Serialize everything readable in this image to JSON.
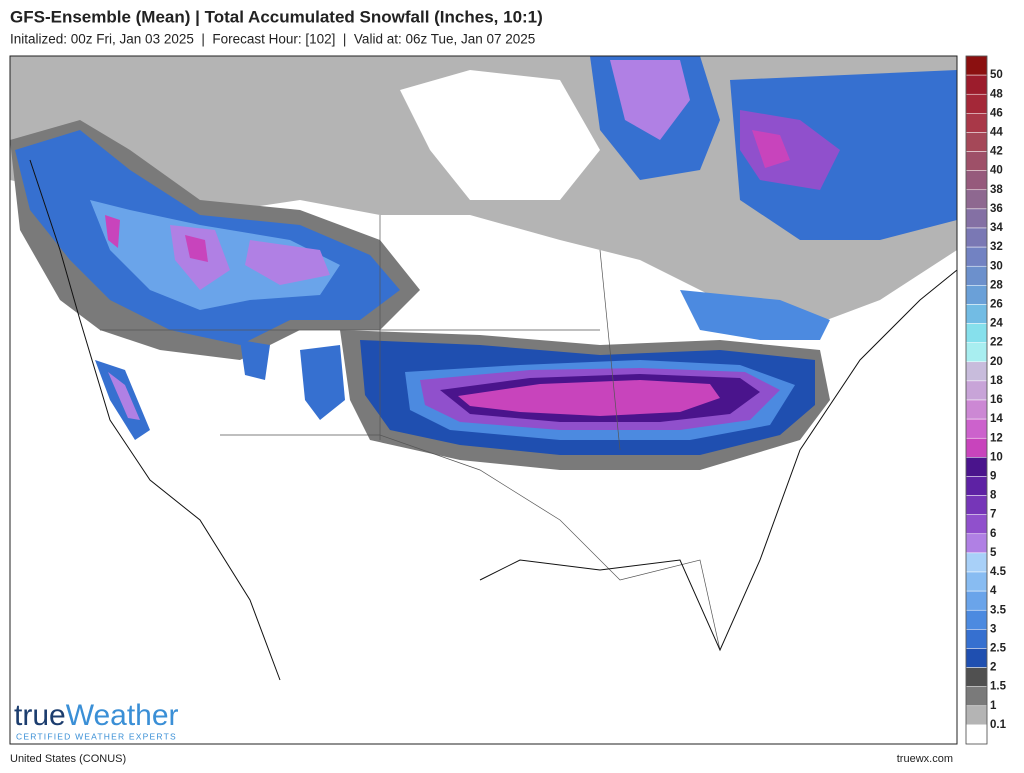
{
  "header": {
    "title": "GFS-Ensemble (Mean) | Total Accumulated Snowfall (Inches, 10:1)",
    "subtitle": "Initalized: 00z Fri, Jan 03 2025  |  Forecast Hour: [102]  |  Valid at: 06z Tue, Jan 07 2025"
  },
  "legend": {
    "labels": [
      50,
      48,
      46,
      44,
      42,
      40,
      38,
      36,
      34,
      32,
      30,
      28,
      26,
      24,
      22,
      20,
      18,
      16,
      14,
      12,
      10,
      9,
      8,
      7,
      6,
      5,
      4.5,
      4,
      3.5,
      3,
      2.5,
      2,
      1.5,
      1,
      0.1
    ],
    "colors": [
      "#8b1010",
      "#9c1c2c",
      "#a42838",
      "#a93848",
      "#a54858",
      "#9e5068",
      "#965a7c",
      "#8e6890",
      "#8470a4",
      "#7a78b4",
      "#7282c2",
      "#6c90cc",
      "#6aa0d8",
      "#72bce4",
      "#86e0ec",
      "#a8eef0",
      "#c8bcdc",
      "#c8a4d8",
      "#cc88d4",
      "#cc62cc",
      "#c844bc",
      "#4a148c",
      "#5e22a4",
      "#7636b8",
      "#9050cc",
      "#b080e4",
      "#a8d0f8",
      "#88bcf2",
      "#6aa4ea",
      "#4c8ae0",
      "#3670d0",
      "#1f4fb0",
      "#505050",
      "#7a7a7a",
      "#b4b4b4",
      "#ffffff"
    ]
  },
  "logo": {
    "name_part1": "true",
    "name_part2": "Weather",
    "tagline": "CERTIFIED WEATHER EXPERTS"
  },
  "footer": {
    "region": "United States (CONUS)",
    "site": "truewx.com"
  }
}
